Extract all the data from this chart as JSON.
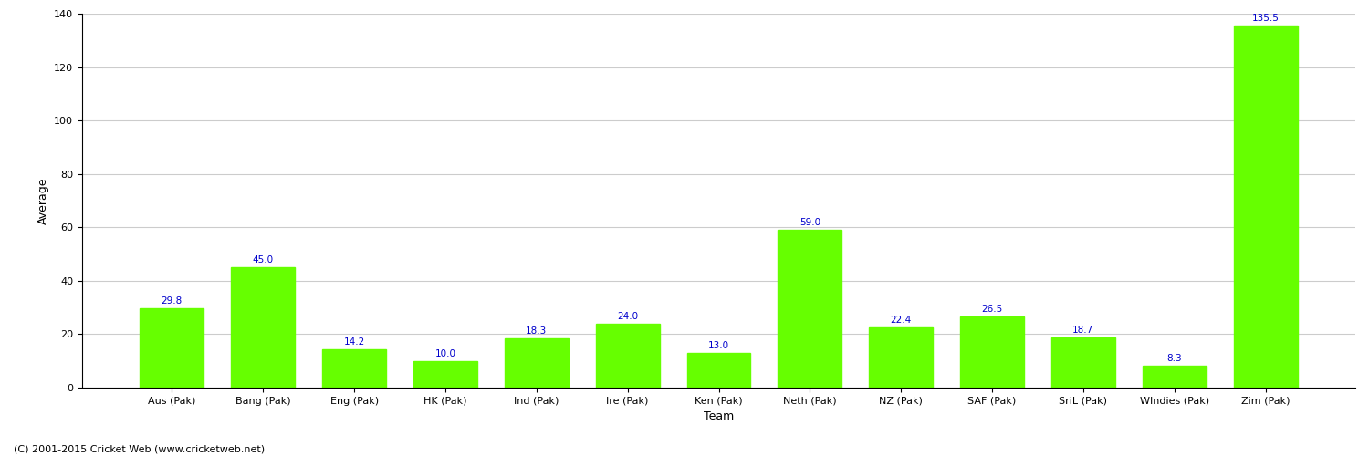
{
  "categories": [
    "Aus (Pak)",
    "Bang (Pak)",
    "Eng (Pak)",
    "HK (Pak)",
    "Ind (Pak)",
    "Ire (Pak)",
    "Ken (Pak)",
    "Neth (Pak)",
    "NZ (Pak)",
    "SAF (Pak)",
    "SriL (Pak)",
    "WIndies (Pak)",
    "Zim (Pak)"
  ],
  "values": [
    29.8,
    45.0,
    14.2,
    10.0,
    18.3,
    24.0,
    13.0,
    59.0,
    22.4,
    26.5,
    18.7,
    8.3,
    135.5
  ],
  "bar_color": "#66ff00",
  "label_color": "#0000cc",
  "xlabel": "Team",
  "ylabel": "Average",
  "ylim": [
    0,
    140
  ],
  "yticks": [
    0,
    20,
    40,
    60,
    80,
    100,
    120,
    140
  ],
  "bar_width": 0.7,
  "grid_color": "#cccccc",
  "bg_color": "#ffffff",
  "footer": "(C) 2001-2015 Cricket Web (www.cricketweb.net)",
  "axis_label_fontsize": 9,
  "tick_label_fontsize": 8,
  "value_label_fontsize": 7.5
}
